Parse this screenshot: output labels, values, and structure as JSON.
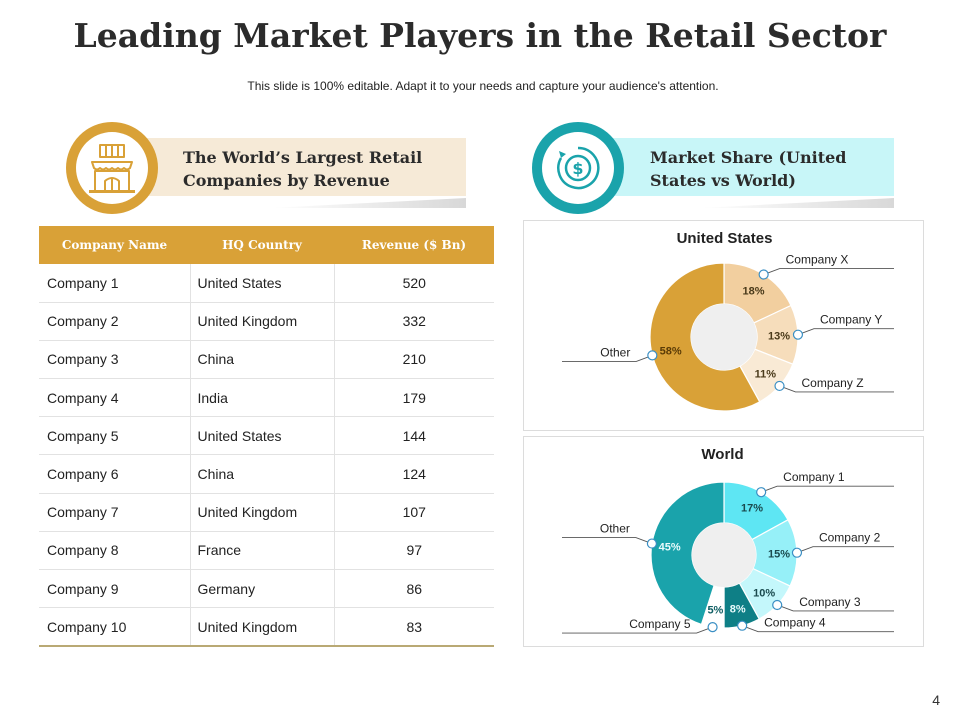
{
  "header": {
    "title": "Leading Market Players in the Retail Sector",
    "subtitle": "This slide is 100% editable. Adapt it to your needs and capture your audience's attention."
  },
  "left_section": {
    "line1": "The World’s Largest Retail",
    "line2": "Companies by Revenue",
    "icon": "store-icon",
    "accent": "#d9a137"
  },
  "right_section": {
    "line1": "Market Share (United",
    "line2": "States vs World)",
    "icon": "dollar-coin-icon",
    "accent": "#1aa3ab"
  },
  "table": {
    "columns": [
      "Company Name",
      "HQ Country",
      "Revenue ($ Bn)"
    ],
    "rows": [
      [
        "Company 1",
        "United States",
        "520"
      ],
      [
        "Company 2",
        "United Kingdom",
        "332"
      ],
      [
        "Company 3",
        "China",
        "210"
      ],
      [
        "Company 4",
        "India",
        "179"
      ],
      [
        "Company 5",
        "United States",
        "144"
      ],
      [
        "Company 6",
        "China",
        "124"
      ],
      [
        "Company 7",
        "United Kingdom",
        "107"
      ],
      [
        "Company 8",
        "France",
        "97"
      ],
      [
        "Company 9",
        "Germany",
        "86"
      ],
      [
        "Company 10",
        "United Kingdom",
        "83"
      ]
    ]
  },
  "chart_data": [
    {
      "type": "pie",
      "title": "United States",
      "categories": [
        "Company X",
        "Company Y",
        "Company Z",
        "Other"
      ],
      "values": [
        18,
        13,
        11,
        58
      ],
      "labels": [
        "18%",
        "13%",
        "11%",
        "58%"
      ],
      "colors": [
        "#f2cf9f",
        "#f6ddbb",
        "#f9ead5",
        "#d9a137"
      ]
    },
    {
      "type": "pie",
      "title": "World",
      "categories": [
        "Company 1",
        "Company 2",
        "Company 3",
        "Company 4",
        "Company 5",
        "Other"
      ],
      "values": [
        17,
        15,
        10,
        8,
        5,
        45
      ],
      "labels": [
        "17%",
        "15%",
        "10%",
        "8%",
        "5%",
        "45%"
      ],
      "colors": [
        "#5ee6f3",
        "#96f0f8",
        "#c4f7fb",
        "#0e7f86",
        "#ffffff",
        "#1aa3ab"
      ]
    }
  ],
  "page_number": "4"
}
